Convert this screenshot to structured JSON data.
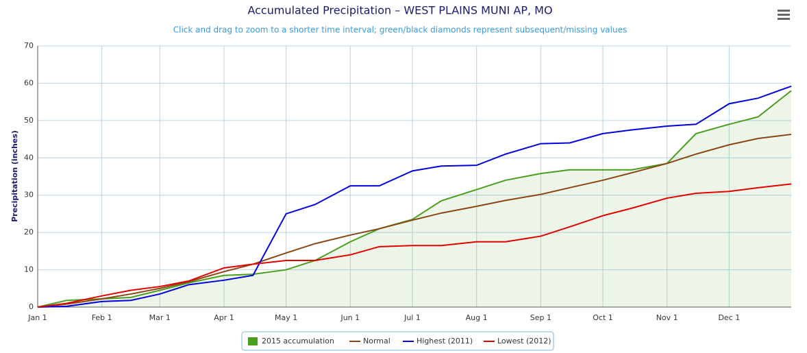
{
  "chart_data": {
    "type": "line",
    "title": "Accumulated Precipitation – WEST PLAINS MUNI AP, MO",
    "subtitle": "Click and drag to zoom to a shorter time interval; green/black diamonds represent subsequent/missing values",
    "y_label": "Precipitation (inches)",
    "x": [
      1,
      15,
      32,
      46,
      60,
      74,
      91,
      105,
      121,
      135,
      152,
      166,
      182,
      196,
      213,
      227,
      244,
      258,
      274,
      288,
      305,
      319,
      335,
      349,
      365
    ],
    "xlim": [
      1,
      365
    ],
    "xticks": [
      {
        "value": 1,
        "label": "Jan 1"
      },
      {
        "value": 32,
        "label": "Feb 1"
      },
      {
        "value": 60,
        "label": "Mar 1"
      },
      {
        "value": 91,
        "label": "Apr 1"
      },
      {
        "value": 121,
        "label": "May 1"
      },
      {
        "value": 152,
        "label": "Jun 1"
      },
      {
        "value": 182,
        "label": "Jul 1"
      },
      {
        "value": 213,
        "label": "Aug 1"
      },
      {
        "value": 244,
        "label": "Sep 1"
      },
      {
        "value": 274,
        "label": "Oct 1"
      },
      {
        "value": 305,
        "label": "Nov 1"
      },
      {
        "value": 335,
        "label": "Dec 1"
      }
    ],
    "ylim": [
      0,
      70
    ],
    "yticks": [
      0,
      10,
      20,
      30,
      40,
      50,
      60,
      70
    ],
    "grid": true,
    "legend": "bottom",
    "series": [
      {
        "name": "2015 accumulation",
        "color": "#4a9e1e",
        "area": true,
        "values": [
          0,
          1.8,
          2.2,
          2.6,
          4.5,
          6.5,
          8.5,
          8.8,
          10,
          12.5,
          17.5,
          21,
          23.5,
          28.5,
          31.5,
          34,
          35.8,
          36.8,
          36.8,
          36.8,
          38.5,
          46.5,
          49,
          51,
          58
        ]
      },
      {
        "name": "Normal",
        "color": "#8b4513",
        "values": [
          0,
          0.8,
          2.2,
          3.5,
          5,
          6.8,
          9.5,
          11.5,
          14.5,
          17,
          19.3,
          21,
          23.3,
          25.2,
          27,
          28.6,
          30.2,
          32,
          34,
          36,
          38.5,
          41,
          43.5,
          45.2,
          46.3
        ]
      },
      {
        "name": "Highest (2011)",
        "color": "#0000dd",
        "values": [
          0,
          0.2,
          1.5,
          1.8,
          3.5,
          6,
          7.2,
          8.5,
          25,
          27.5,
          32.5,
          32.5,
          36.5,
          37.8,
          38,
          41,
          43.8,
          44,
          46.5,
          47.5,
          48.5,
          49,
          54.5,
          56,
          59.2
        ]
      },
      {
        "name": "Lowest (2012)",
        "color": "#e00000",
        "values": [
          0,
          1,
          3,
          4.5,
          5.5,
          7,
          10.5,
          11.5,
          12.5,
          12.5,
          14,
          16.2,
          16.5,
          16.5,
          17.5,
          17.5,
          19,
          21.5,
          24.5,
          26.5,
          29.2,
          30.5,
          31,
          32,
          33
        ]
      }
    ]
  }
}
